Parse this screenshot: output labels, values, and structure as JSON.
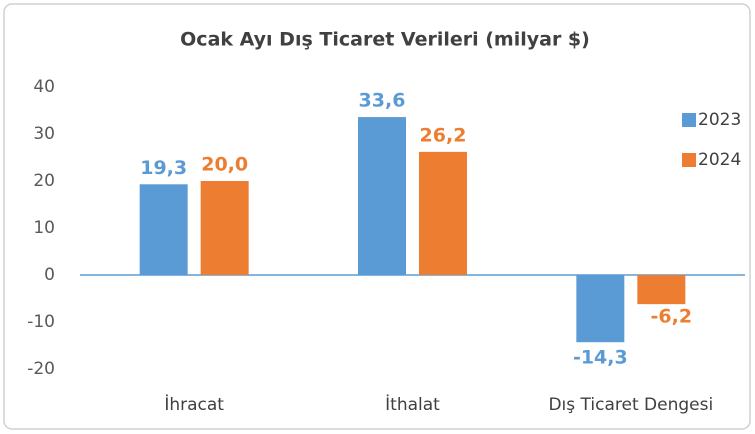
{
  "chart_data": {
    "type": "bar",
    "title": "Ocak Ayı Dış Ticaret Verileri (milyar $)",
    "categories": [
      "İhracat",
      "İthalat",
      "Dış Ticaret Dengesi"
    ],
    "series": [
      {
        "name": "2023",
        "color": "#5b9bd5",
        "values": [
          19.3,
          33.6,
          -14.3
        ],
        "value_labels": [
          "19,3",
          "33,6",
          "-14,3"
        ]
      },
      {
        "name": "2024",
        "color": "#ed7d31",
        "values": [
          20.0,
          26.2,
          -6.2
        ],
        "value_labels": [
          "20,0",
          "26,2",
          "-6,2"
        ]
      }
    ],
    "ylim": [
      -20,
      40
    ],
    "yticks": [
      -20,
      -10,
      0,
      10,
      20,
      30,
      40
    ],
    "grid": false,
    "legend": "right"
  }
}
